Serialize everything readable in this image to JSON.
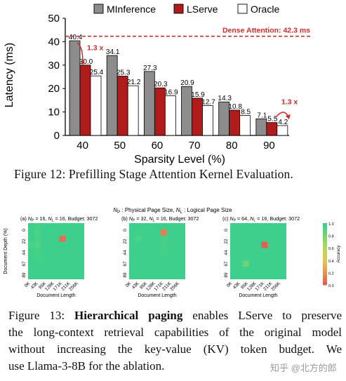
{
  "figure12": {
    "caption_prefix": "Figure 12:",
    "caption": "Prefilling Stage Attention Kernel Evaluation.",
    "chart_data": {
      "type": "bar",
      "categories": [
        "40",
        "50",
        "60",
        "70",
        "80",
        "90"
      ],
      "series": [
        {
          "name": "MInference",
          "values": [
            40.4,
            34.1,
            27.3,
            20.9,
            14.3,
            7.1
          ],
          "color": "#8c8c8c"
        },
        {
          "name": "LServe",
          "values": [
            30.0,
            25.3,
            20.3,
            15.9,
            10.8,
            5.5
          ],
          "color": "#b01c1c"
        },
        {
          "name": "Oracle",
          "values": [
            25.4,
            21.2,
            16.9,
            12.7,
            8.5,
            4.2
          ],
          "color": "#ffffff"
        }
      ],
      "value_labels": [
        [
          "40.4",
          "34.1",
          "27.3",
          "20.9",
          "14.3",
          "7.1"
        ],
        [
          "30.0",
          "25.3",
          "20.3",
          "15.9",
          "10.8",
          "5.5"
        ],
        [
          "25.4",
          "21.2",
          "16.9",
          "12.7",
          "8.5",
          "4.2"
        ]
      ],
      "xlabel": "Sparsity Level (%)",
      "ylabel": "Latency (ms)",
      "ylim": [
        0,
        50
      ],
      "yticks": [
        "0",
        "10",
        "20",
        "30",
        "40",
        "50"
      ],
      "reference_line": {
        "value": 42.3,
        "label": "Dense Attention: 42.3 ms",
        "color": "#d42a2a"
      },
      "annotations": [
        "1.3 x",
        "1.3 x"
      ],
      "annotation_color": "#d42a2a",
      "grid": false,
      "legend_position": "top"
    }
  },
  "figure13": {
    "header": {
      "np_sym": "N",
      "np_sub": "P",
      "np_desc": " : Physical Page Size, ",
      "nl_sym": "N",
      "nl_sub": "L",
      "nl_desc": " : Logical Page Size"
    },
    "panels": [
      {
        "label": "(a) ",
        "np": "16",
        "nl": "16",
        "budget": "3072"
      },
      {
        "label": "(b) ",
        "np": "32",
        "nl": "16",
        "budget": "3072"
      },
      {
        "label": "(c) ",
        "np": "64",
        "nl": "16",
        "budget": "3072"
      }
    ],
    "panel_fixed": {
      "eq": " = ",
      "sep": ", ",
      "budget_prefix": ", Budget: "
    },
    "chart_data": {
      "type": "heatmap",
      "x": [
        "0K",
        "43K",
        "85K",
        "128K",
        "171K",
        "211K",
        "256K"
      ],
      "y": [
        "0",
        "22",
        "44",
        "67",
        "89"
      ],
      "xlabel": "Document Length",
      "ylabel": "Document Depth (%)",
      "colorbar": {
        "label": "Accuracy",
        "ticks": [
          "1.0",
          "0.8",
          "0.6",
          "0.4",
          "0.2",
          "0.0"
        ],
        "min": 0,
        "max": 1
      },
      "base_value": 1.0,
      "cell_values": [
        [
          {
            "row": 0,
            "col": 1,
            "v": 0.97
          },
          {
            "row": 1,
            "col": 1,
            "v": 0.95
          },
          {
            "row": 2,
            "col": 1,
            "v": 0.97
          },
          {
            "row": 3,
            "col": 1,
            "v": 0.94
          },
          {
            "row": 4,
            "col": 1,
            "v": 0.96
          },
          {
            "row": 5,
            "col": 1,
            "v": 0.97
          },
          {
            "row": 3,
            "col": 0,
            "v": 0.97
          },
          {
            "row": 2,
            "col": 5,
            "v": 0.1
          }
        ],
        [
          {
            "row": 1,
            "col": 5,
            "v": 0.15
          },
          {
            "row": 2,
            "col": 5,
            "v": 0.96
          },
          {
            "row": 3,
            "col": 5,
            "v": 0.96
          },
          {
            "row": 4,
            "col": 5,
            "v": 0.96
          },
          {
            "row": 2,
            "col": 1,
            "v": 0.95
          }
        ],
        [
          {
            "row": 3,
            "col": 5,
            "v": 0.05
          },
          {
            "row": 6,
            "col": 2,
            "v": 0.85
          }
        ]
      ],
      "grid_rows": 9,
      "grid_cols": 9
    },
    "caption": {
      "prefix": "Figure 13: ",
      "bold": "Hierarchical paging",
      "rest1": " enables LServe to preserve",
      "line2": "the long-context retrieval capabilities of the original model",
      "line3": "without increasing the key-value (KV) token budget. We",
      "line4": "use Llama-3-8B for the ablation."
    }
  },
  "watermark": "知乎 @北方的郎"
}
